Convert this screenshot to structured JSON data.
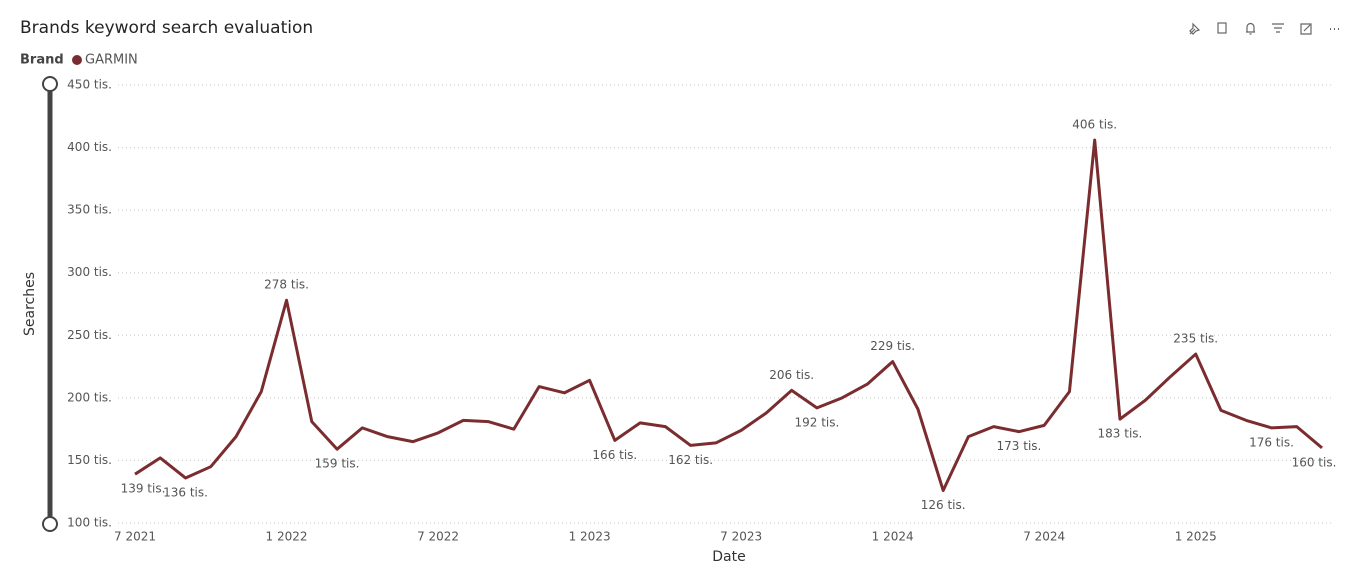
{
  "chart_data": {
    "type": "line",
    "title": "Brands keyword search evaluation",
    "legend_title": "Brand",
    "x_label": "Date",
    "y_label": "Searches",
    "categories": [
      "7 2021",
      null,
      null,
      null,
      null,
      null,
      "1 2022",
      null,
      null,
      null,
      null,
      null,
      "7 2022",
      null,
      null,
      null,
      null,
      null,
      "1 2023",
      null,
      null,
      null,
      null,
      null,
      "7 2023",
      null,
      null,
      null,
      null,
      null,
      "1 2024",
      null,
      null,
      null,
      null,
      null,
      "7 2024",
      null,
      null,
      null,
      null,
      null,
      "1 2025",
      null,
      null,
      null,
      null,
      null
    ],
    "series": [
      {
        "name": "GARMIN",
        "color": "#7b2c2f",
        "values": [
          139000,
          152000,
          136000,
          145000,
          169000,
          205000,
          278000,
          181000,
          159000,
          176000,
          169000,
          165000,
          172000,
          182000,
          181000,
          175000,
          209000,
          204000,
          214000,
          166000,
          180000,
          177000,
          162000,
          164000,
          174000,
          188000,
          206000,
          192000,
          200000,
          211000,
          229000,
          191000,
          126000,
          169000,
          177000,
          173000,
          178000,
          205000,
          406000,
          183000,
          198000,
          217000,
          235000,
          190000,
          182000,
          176000,
          177000,
          160000
        ],
        "value_labels": [
          "139 tis.",
          null,
          "136 tis.",
          null,
          null,
          null,
          "278 tis.",
          null,
          "159 tis.",
          null,
          null,
          null,
          null,
          null,
          null,
          null,
          null,
          null,
          null,
          "166 tis.",
          null,
          null,
          "162 tis.",
          null,
          null,
          null,
          "206 tis.",
          "192 tis.",
          null,
          null,
          "229 tis.",
          null,
          "126 tis.",
          null,
          null,
          "173 tis.",
          null,
          null,
          "406 tis.",
          "183 tis.",
          null,
          null,
          "235 tis.",
          null,
          null,
          "176 tis.",
          null,
          "160 tis."
        ]
      }
    ],
    "ylim": [
      100000,
      450000
    ],
    "yticks": [
      {
        "value": 100000,
        "label": "100 tis."
      },
      {
        "value": 150000,
        "label": "150 tis."
      },
      {
        "value": 200000,
        "label": "200 tis."
      },
      {
        "value": 250000,
        "label": "250 tis."
      },
      {
        "value": 300000,
        "label": "300 tis."
      },
      {
        "value": 350000,
        "label": "350 tis."
      },
      {
        "value": 400000,
        "label": "400 tis."
      },
      {
        "value": 450000,
        "label": "450 tis."
      }
    ],
    "grid": true
  }
}
